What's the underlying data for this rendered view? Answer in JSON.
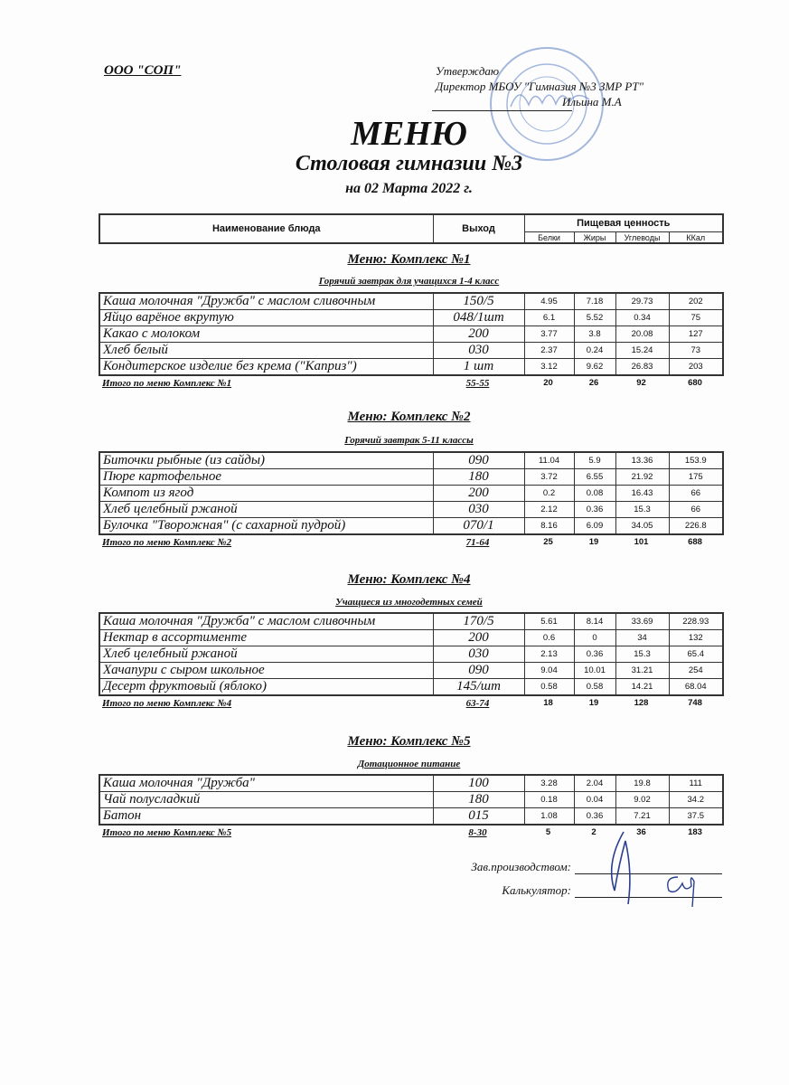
{
  "header": {
    "organization": "ООО \"СОП\"",
    "approve": "Утверждаю",
    "director": "Директор МБОУ \"Гимназия №3 ЗМР РТ\"",
    "signatory": "Ильина М.А",
    "title": "МЕНЮ",
    "subtitle": "Столовая гимназии №3",
    "date": "на 02 Марта 2022 г."
  },
  "columns": {
    "name": "Наименование блюда",
    "output": "Выход",
    "nutrition": "Пищевая ценность",
    "protein": "Белки",
    "fat": "Жиры",
    "carbs": "Углеводы",
    "kcal": "ККал"
  },
  "sections": [
    {
      "title": "Меню: Комплекс №1",
      "subtitle": "Горячий завтрак для учащихся 1-4 класс",
      "items": [
        [
          "Каша молочная \"Дружба\" с маслом сливочным",
          "150/5",
          "4.95",
          "7.18",
          "29.73",
          "202"
        ],
        [
          "Яйцо варёное вкрутую",
          "048/1шт",
          "6.1",
          "5.52",
          "0.34",
          "75"
        ],
        [
          "Какао с  молоком",
          "200",
          "3.77",
          "3.8",
          "20.08",
          "127"
        ],
        [
          "Хлеб белый",
          "030",
          "2.37",
          "0.24",
          "15.24",
          "73"
        ],
        [
          "Кондитерское изделие без крема (\"Каприз\")",
          "1 шт",
          "3.12",
          "9.62",
          "26.83",
          "203"
        ]
      ],
      "total": [
        "Итого по меню Комплекс №1",
        "55-55",
        "20",
        "26",
        "92",
        "680"
      ]
    },
    {
      "title": "Меню: Комплекс №2",
      "subtitle": "Горячий завтрак 5-11 классы",
      "items": [
        [
          "Биточки рыбные (из сайды)",
          "090",
          "11.04",
          "5.9",
          "13.36",
          "153.9"
        ],
        [
          "Пюре картофельное",
          "180",
          "3.72",
          "6.55",
          "21.92",
          "175"
        ],
        [
          "Компот из  ягод",
          "200",
          "0.2",
          "0.08",
          "16.43",
          "66"
        ],
        [
          "Хлеб  целебный ржаной",
          "030",
          "2.12",
          "0.36",
          "15.3",
          "66"
        ],
        [
          "Булочка \"Творожная\" (с сахарной пудрой)",
          "070/1",
          "8.16",
          "6.09",
          "34.05",
          "226.8"
        ]
      ],
      "total": [
        "Итого по меню Комплекс №2",
        "71-64",
        "25",
        "19",
        "101",
        "688"
      ]
    },
    {
      "title": "Меню: Комплекс №4",
      "subtitle": "Учащиеся из многодетных семей",
      "items": [
        [
          "Каша молочная \"Дружба\" с маслом сливочным",
          "170/5",
          "5.61",
          "8.14",
          "33.69",
          "228.93"
        ],
        [
          "Нектар в ассортименте",
          "200",
          "0.6",
          "0",
          "34",
          "132"
        ],
        [
          "Хлеб  целебный ржаной",
          "030",
          "2.13",
          "0.36",
          "15.3",
          "65.4"
        ],
        [
          "Хачапури с сыром школьное",
          "090",
          "9.04",
          "10.01",
          "31.21",
          "254"
        ],
        [
          "Десерт фруктовый (яблоко)",
          "145/шт",
          "0.58",
          "0.58",
          "14.21",
          "68.04"
        ]
      ],
      "total": [
        "Итого по меню Комплекс №4",
        "63-74",
        "18",
        "19",
        "128",
        "748"
      ]
    },
    {
      "title": "Меню: Комплекс №5",
      "subtitle": "Дотационное питание",
      "items": [
        [
          "Каша молочная \"Дружба\"",
          "100",
          "3.28",
          "2.04",
          "19.8",
          "111"
        ],
        [
          "Чай полусладкий",
          "180",
          "0.18",
          "0.04",
          "9.02",
          "34.2"
        ],
        [
          "Батон",
          "015",
          "1.08",
          "0.36",
          "7.21",
          "37.5"
        ]
      ],
      "total": [
        "Итого по меню Комплекс №5",
        "8-30",
        "5",
        "2",
        "36",
        "183"
      ]
    }
  ],
  "footer": {
    "production_head": "Зав.производством:",
    "calculator": "Калькулятор:"
  },
  "colors": {
    "stamp": "#5b7fc4",
    "ink": "#1a1a1a",
    "signature": "#2a3f8f"
  }
}
